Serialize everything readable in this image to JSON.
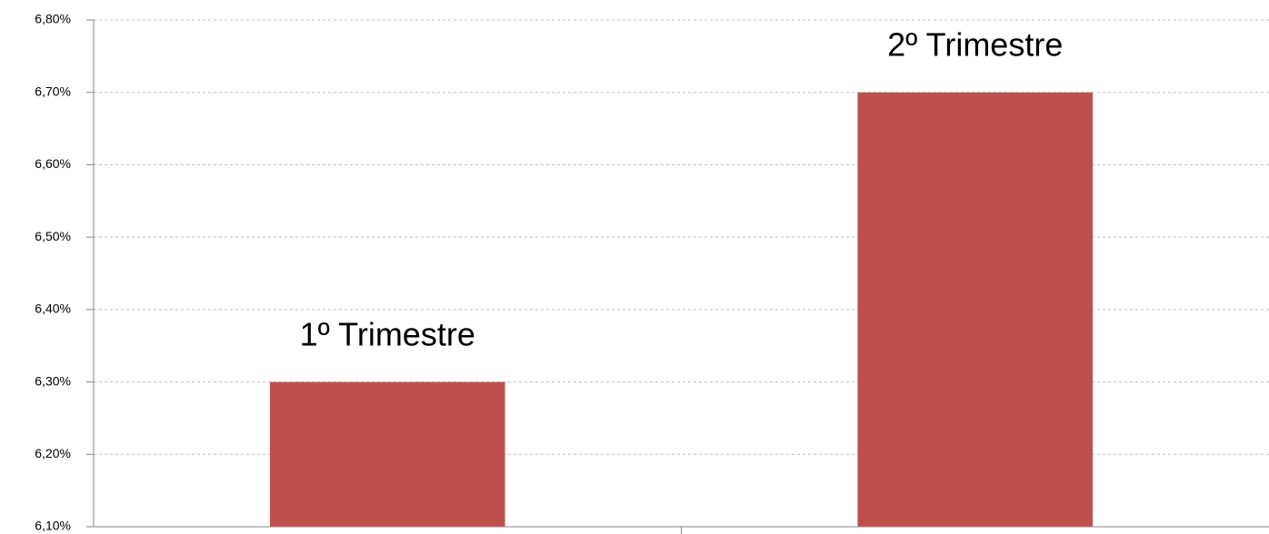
{
  "chart_data": {
    "type": "bar",
    "categories": [
      "1º Trimestre",
      "2º Trimestre"
    ],
    "values": [
      6.3,
      6.7
    ],
    "color": "#c0504d",
    "ylim": [
      6.1,
      6.8
    ],
    "yticks": [
      {
        "value": 6.1,
        "label": "6,10%"
      },
      {
        "value": 6.2,
        "label": "6,20%"
      },
      {
        "value": 6.3,
        "label": "6,30%"
      },
      {
        "value": 6.4,
        "label": "6,40%"
      },
      {
        "value": 6.5,
        "label": "6,50%"
      },
      {
        "value": 6.6,
        "label": "6,60%"
      },
      {
        "value": 6.7,
        "label": "6,70%"
      },
      {
        "value": 6.8,
        "label": "6,80%"
      }
    ],
    "grid": true
  }
}
